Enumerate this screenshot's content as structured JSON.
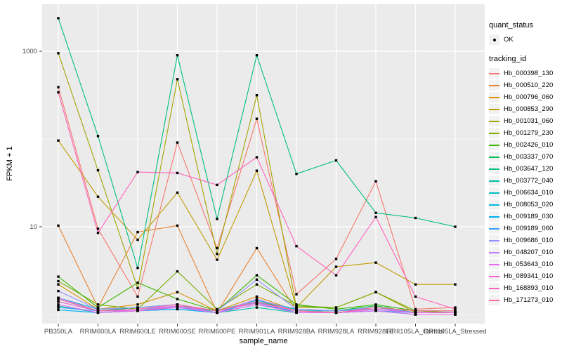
{
  "figure": {
    "background": "#ffffff",
    "panel_background": "#ebebeb",
    "gridline_color": "#ffffff",
    "point_color": "#000000",
    "axis_text_color": "#4d4d4d",
    "title_text_color": "#000000",
    "legend_key_background": "#f2f2f2"
  },
  "legend": {
    "quant_status_title": "quant_status",
    "quant_status_items": [
      {
        "label": "OK",
        "marker": "black-point"
      }
    ],
    "tracking_id_title": "tracking_id"
  },
  "chart_data": {
    "type": "line",
    "title": "",
    "xlabel": "sample_name",
    "ylabel": "FPKM + 1",
    "y_scale": "log10",
    "ylim": [
      0.79,
      3450
    ],
    "grid": true,
    "legend_position": "right",
    "y_major_ticks": [
      {
        "label": "1000",
        "value": 1000
      },
      {
        "label": "10",
        "value": 10
      }
    ],
    "y_minor_gridlines": [
      100,
      1
    ],
    "point_marker": "small-black-square",
    "categories": [
      "PB350LA",
      "RRIM600LA",
      "RRIM600LE",
      "RRIM600SE",
      "RRIM600PE",
      "RRIM901LA",
      "RRIM928BA",
      "RRIM928LA",
      "RRIM928LE",
      "RRII105LA_Control",
      "RRII105LA_Stressed"
    ],
    "series": [
      {
        "name": "Hb_000398_130",
        "color": "#F8766D",
        "values": [
          390,
          9.5,
          1.6,
          91,
          5.7,
          170,
          1.7,
          4.3,
          33,
          1.15,
          1.2
        ]
      },
      {
        "name": "Hb_000510_220",
        "color": "#EA8331",
        "values": [
          10.3,
          1.2,
          8.7,
          10.3,
          1.05,
          5.7,
          1.1,
          1.05,
          1.15,
          1.05,
          1.05
        ]
      },
      {
        "name": "Hb_000796_060",
        "color": "#D89000",
        "values": [
          2.2,
          1.15,
          1.3,
          1.8,
          1.1,
          1.6,
          1.1,
          1.1,
          1.2,
          1.05,
          1.05
        ]
      },
      {
        "name": "Hb_000853_290",
        "color": "#C09B00",
        "values": [
          96,
          22,
          7.1,
          24.5,
          4.2,
          43.5,
          1.2,
          3.5,
          3.9,
          2.2,
          2.2
        ]
      },
      {
        "name": "Hb_001031_060",
        "color": "#A3A500",
        "values": [
          950,
          44,
          2.0,
          480,
          4.9,
          315,
          1.2,
          1.2,
          1.8,
          1.05,
          1.05
        ]
      },
      {
        "name": "Hb_001279_230",
        "color": "#7CAE00",
        "values": [
          2.4,
          1.3,
          1.15,
          3.1,
          1.15,
          2.2,
          1.25,
          1.2,
          1.8,
          1.1,
          1.05
        ]
      },
      {
        "name": "Hb_002426_010",
        "color": "#39B600",
        "values": [
          2.7,
          1.2,
          2.3,
          1.5,
          1.1,
          2.8,
          1.3,
          1.15,
          1.3,
          1.1,
          1.1
        ]
      },
      {
        "name": "Hb_003337_070",
        "color": "#00BB4E",
        "values": [
          1.5,
          1.1,
          1.2,
          1.3,
          1.05,
          1.4,
          1.15,
          1.1,
          1.26,
          1.05,
          1.05
        ]
      },
      {
        "name": "Hb_003647_120",
        "color": "#00BF7D",
        "values": [
          2380,
          108,
          3.4,
          900,
          12.3,
          900,
          40,
          57,
          14.4,
          12.6,
          10
        ]
      },
      {
        "name": "Hb_003772_040",
        "color": "#00C1A3",
        "values": [
          1.25,
          1.05,
          1.1,
          1.15,
          1.05,
          1.2,
          1.05,
          1.05,
          1.1,
          1.0,
          1.0
        ]
      },
      {
        "name": "Hb_006634_010",
        "color": "#00BFC4",
        "values": [
          1.4,
          1.1,
          1.15,
          1.2,
          1.1,
          1.35,
          1.1,
          1.1,
          1.15,
          1.05,
          1.05
        ]
      },
      {
        "name": "Hb_008053_020",
        "color": "#00BAE0",
        "values": [
          1.55,
          1.15,
          1.2,
          1.3,
          1.1,
          1.45,
          1.15,
          1.1,
          1.2,
          1.05,
          1.05
        ]
      },
      {
        "name": "Hb_009189_030",
        "color": "#00B0F6",
        "values": [
          1.13,
          1.05,
          1.1,
          1.15,
          1.05,
          1.4,
          1.05,
          1.05,
          1.1,
          1.0,
          1.0
        ]
      },
      {
        "name": "Hb_009189_060",
        "color": "#35A2FF",
        "values": [
          1.2,
          1.1,
          1.1,
          1.2,
          1.05,
          1.3,
          1.1,
          1.05,
          1.1,
          1.05,
          1.05
        ]
      },
      {
        "name": "Hb_009686_010",
        "color": "#9590FF",
        "values": [
          1.85,
          1.15,
          1.2,
          1.3,
          1.1,
          2.5,
          1.15,
          1.1,
          1.2,
          1.05,
          1.05
        ]
      },
      {
        "name": "Hb_048207_010",
        "color": "#C77CFF",
        "values": [
          1.55,
          1.1,
          1.15,
          1.25,
          1.05,
          1.5,
          1.1,
          1.05,
          1.15,
          1.05,
          1.05
        ]
      },
      {
        "name": "Hb_053643_010",
        "color": "#E76BF3",
        "values": [
          1.3,
          1.05,
          1.1,
          1.2,
          1.05,
          1.3,
          1.05,
          1.05,
          1.1,
          1.0,
          1.0
        ]
      },
      {
        "name": "Hb_089341_010",
        "color": "#FA62DB",
        "values": [
          1.4,
          1.1,
          1.1,
          1.25,
          1.1,
          1.35,
          1.1,
          1.05,
          1.15,
          1.05,
          1.05
        ]
      },
      {
        "name": "Hb_168893_010",
        "color": "#FF62BC",
        "values": [
          340,
          8.5,
          42,
          41,
          30,
          62,
          6,
          2.8,
          12.9,
          1.6,
          1.15
        ]
      },
      {
        "name": "Hb_171273_010",
        "color": "#FF6A98",
        "values": [
          1.5,
          1.1,
          1.15,
          1.3,
          1.1,
          1.4,
          1.1,
          1.05,
          1.2,
          1.1,
          1.1
        ]
      }
    ]
  }
}
